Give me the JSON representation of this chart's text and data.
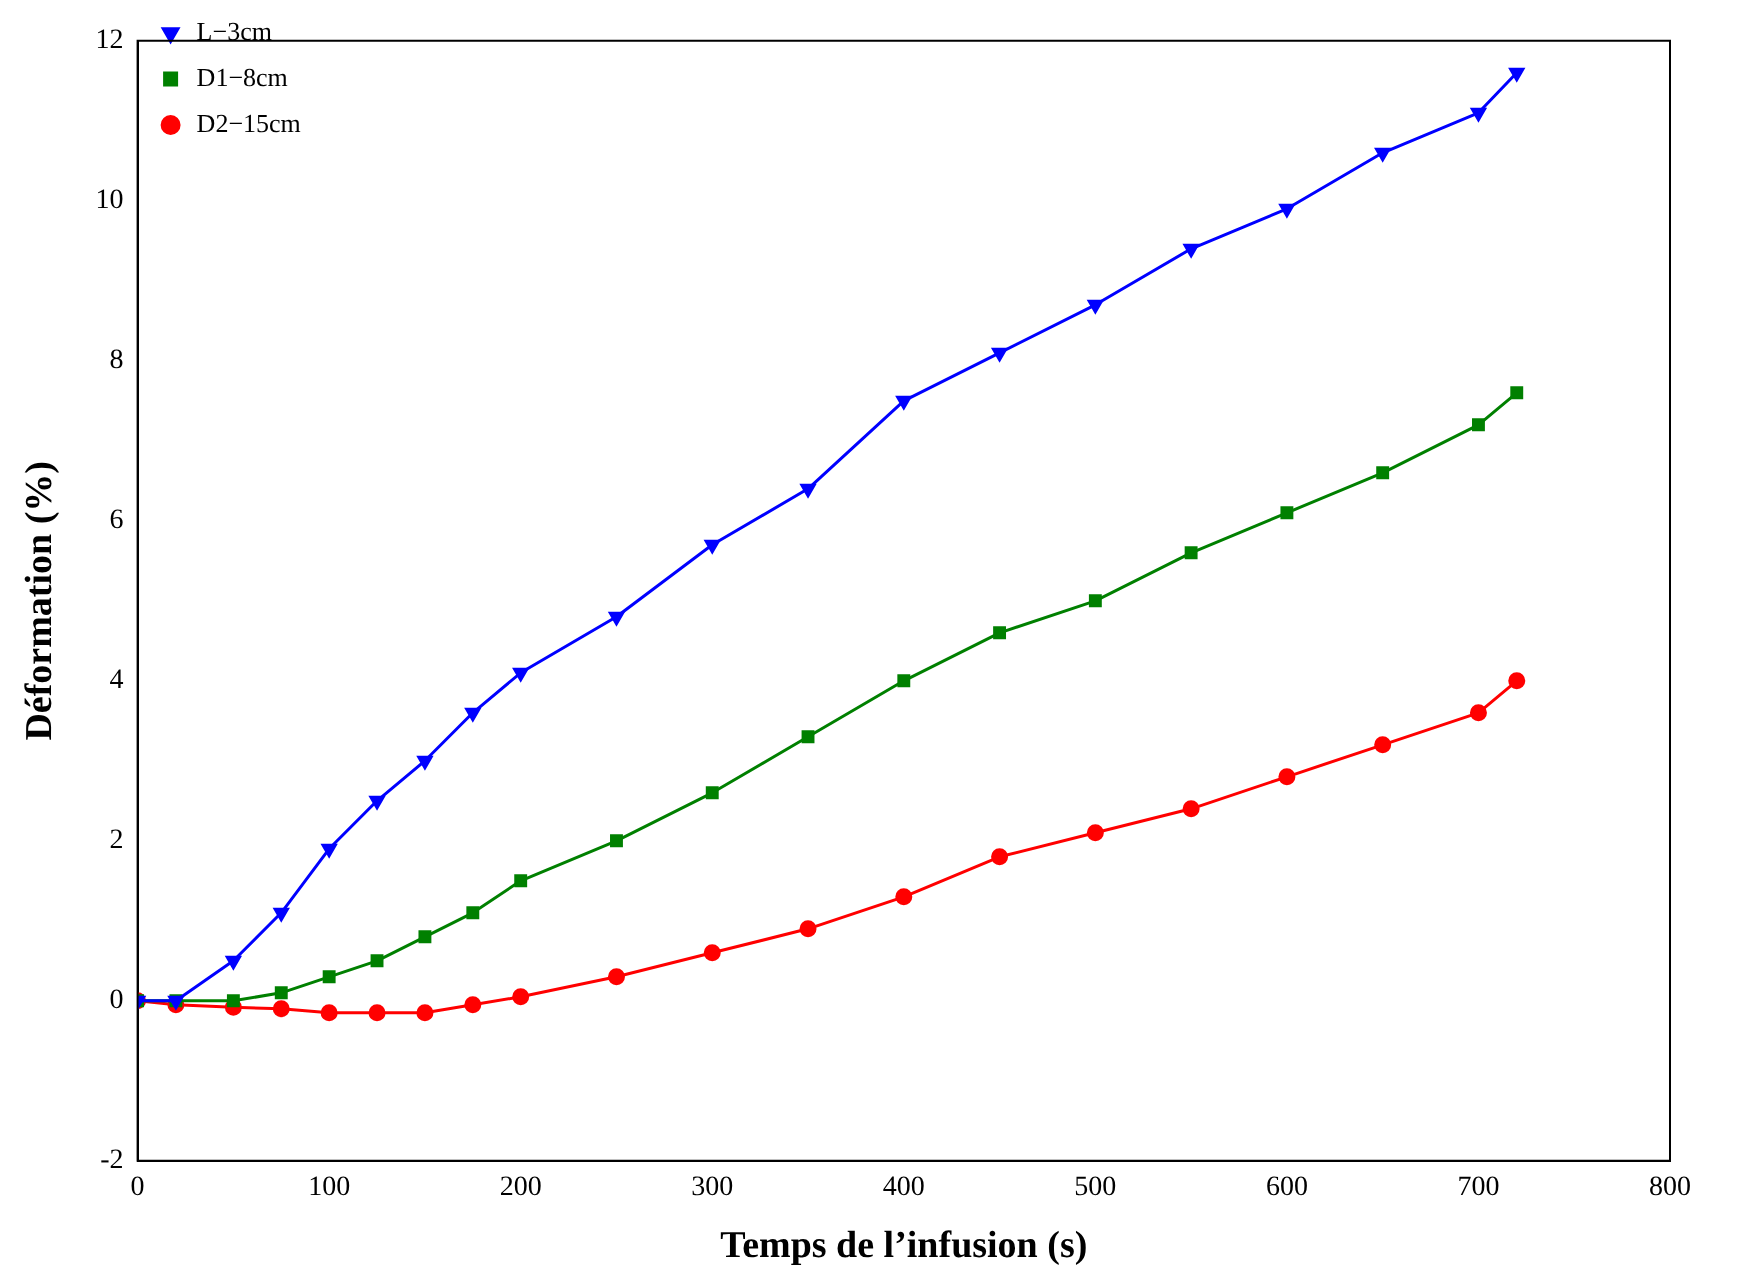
{
  "chart_data": {
    "type": "line",
    "xlabel": "Temps de l’infusion (s)",
    "ylabel": "Déformation (%)",
    "xlim": [
      0,
      800
    ],
    "xticks": [
      0,
      100,
      200,
      300,
      400,
      500,
      600,
      700,
      800
    ],
    "ylim": [
      -2,
      12
    ],
    "yticks": [
      -2,
      0,
      2,
      4,
      6,
      8,
      10,
      12
    ],
    "grid": false,
    "legend": "top left",
    "line_style": "solid",
    "x": [
      0,
      20,
      50,
      75,
      100,
      125,
      150,
      175,
      200,
      250,
      300,
      350,
      400,
      450,
      500,
      550,
      600,
      650,
      700,
      720
    ],
    "series": [
      {
        "name": "L−3cm",
        "color": "#0000ff",
        "marker": "triangle",
        "values": [
          0,
          0,
          0.5,
          1.1,
          1.9,
          2.5,
          3.0,
          3.6,
          4.1,
          4.8,
          5.7,
          6.4,
          7.5,
          8.1,
          8.7,
          9.4,
          9.9,
          10.6,
          11.1,
          11.6
        ]
      },
      {
        "name": "D1−8cm",
        "color": "#008000",
        "marker": "square",
        "values": [
          0,
          0,
          0,
          0.1,
          0.3,
          0.5,
          0.8,
          1.1,
          1.5,
          2.0,
          2.6,
          3.3,
          4.0,
          4.6,
          5.0,
          5.6,
          6.1,
          6.6,
          7.2,
          7.6
        ]
      },
      {
        "name": "D2−15cm",
        "color": "#ff0000",
        "marker": "circle",
        "values": [
          0,
          -0.05,
          -0.08,
          -0.1,
          -0.15,
          -0.15,
          -0.15,
          -0.05,
          0.05,
          0.3,
          0.6,
          0.9,
          1.3,
          1.8,
          2.1,
          2.4,
          2.8,
          3.2,
          3.6,
          4.0
        ]
      }
    ]
  }
}
